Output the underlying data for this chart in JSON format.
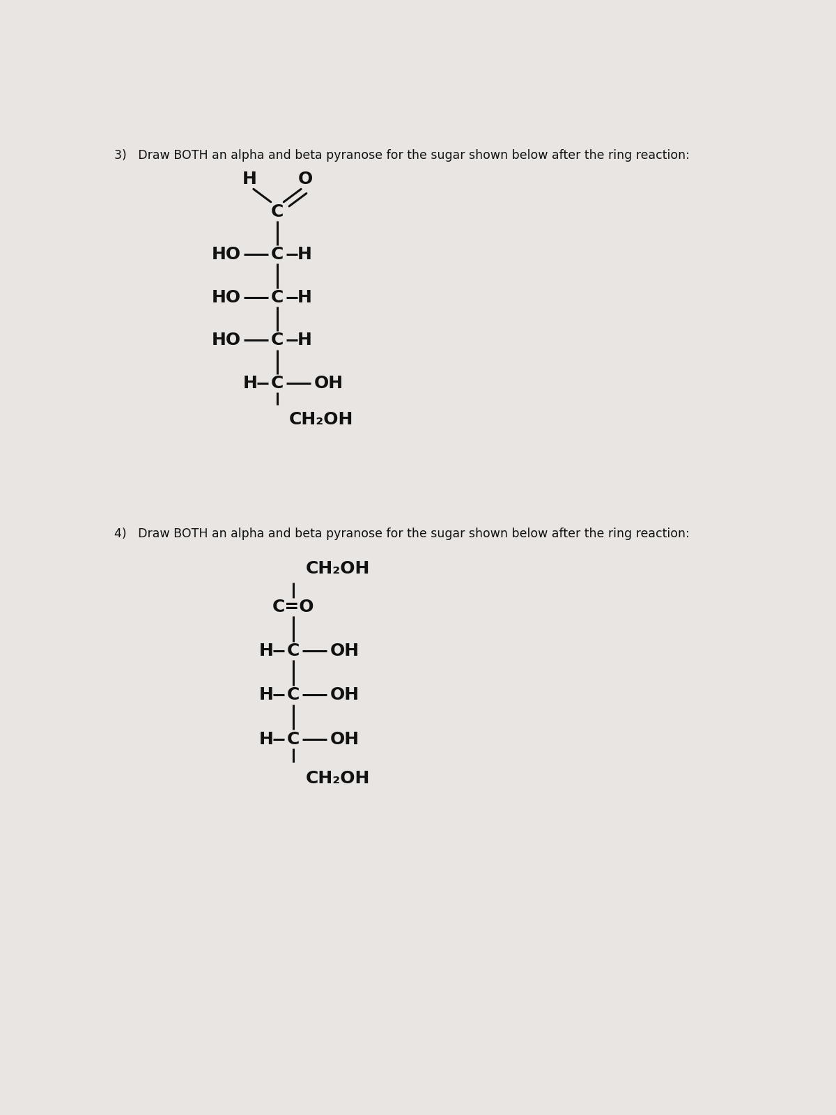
{
  "bg_color": "#e8e5e2",
  "text_color": "#111111",
  "title3": "3)   Draw BOTH an alpha and beta pyranose for the sugar shown below after the ring reaction:",
  "title4": "4)   Draw BOTH an alpha and beta pyranose for the sugar shown below after the ring reaction:",
  "sugar3": {
    "rows": [
      {
        "left": "HO",
        "center": "C",
        "right": "H"
      },
      {
        "left": "HO",
        "center": "C",
        "right": "H"
      },
      {
        "left": "HO",
        "center": "C",
        "right": "H"
      },
      {
        "left": "H",
        "center": "C",
        "right": "OH"
      }
    ],
    "bottom": "CH₂OH"
  },
  "sugar4": {
    "top": "CH₂OH",
    "rows": [
      {
        "left": "H",
        "center": "C",
        "right": "OH"
      },
      {
        "left": "H",
        "center": "C",
        "right": "OH"
      },
      {
        "left": "H",
        "center": "C",
        "right": "OH"
      }
    ],
    "bottom": "CH₂OH"
  }
}
